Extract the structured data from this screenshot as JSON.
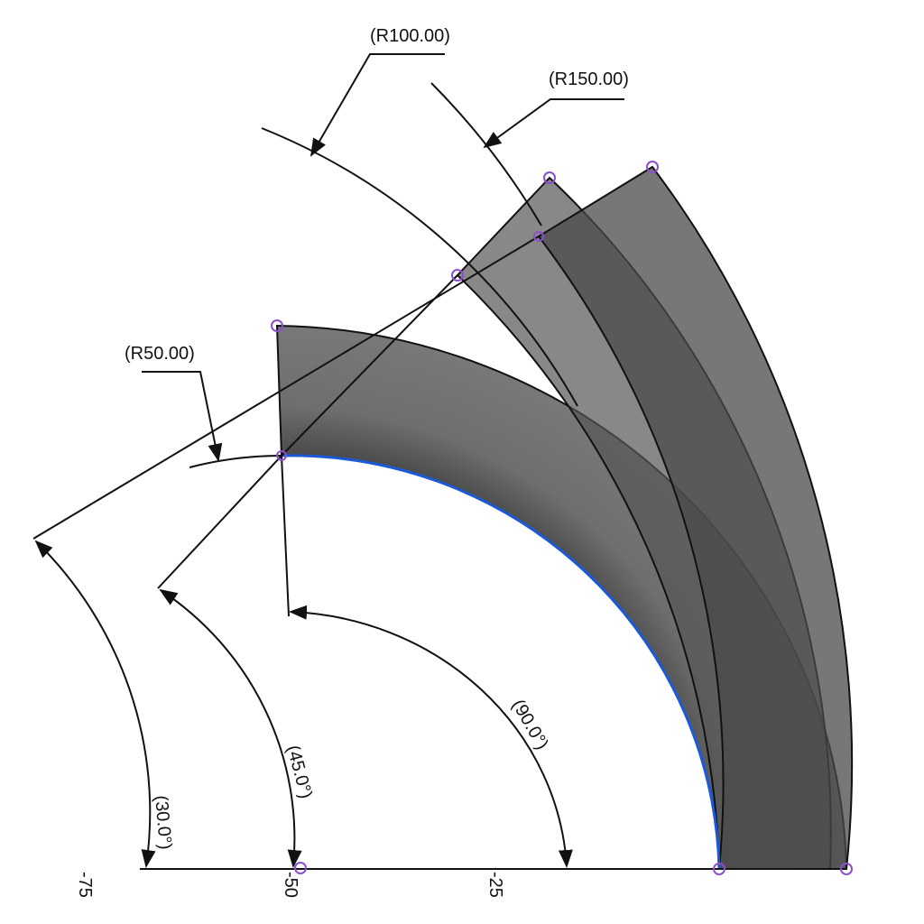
{
  "radius_labels": [
    "(R100.00)",
    "(R150.00)",
    "(R50.00)"
  ],
  "angle_labels": [
    "(90.0°)",
    "(45.0°)",
    "(30.0°)"
  ],
  "axis_labels": [
    "-75",
    "-50",
    "-25"
  ]
}
